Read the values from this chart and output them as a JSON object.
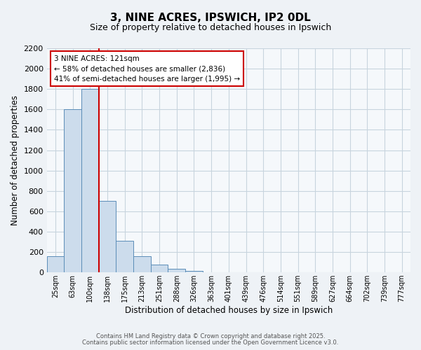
{
  "title": "3, NINE ACRES, IPSWICH, IP2 0DL",
  "subtitle": "Size of property relative to detached houses in Ipswich",
  "xlabel": "Distribution of detached houses by size in Ipswich",
  "ylabel": "Number of detached properties",
  "bar_labels": [
    "25sqm",
    "63sqm",
    "100sqm",
    "138sqm",
    "175sqm",
    "213sqm",
    "251sqm",
    "288sqm",
    "326sqm",
    "363sqm",
    "401sqm",
    "439sqm",
    "476sqm",
    "514sqm",
    "551sqm",
    "589sqm",
    "627sqm",
    "664sqm",
    "702sqm",
    "739sqm",
    "777sqm"
  ],
  "bar_values": [
    160,
    1600,
    1800,
    700,
    310,
    160,
    80,
    35,
    15,
    0,
    0,
    0,
    0,
    0,
    0,
    0,
    0,
    0,
    0,
    0,
    0
  ],
  "bar_color": "#ccdcec",
  "bar_edge_color": "#5b8db8",
  "vline_x": 2.5,
  "vline_color": "#cc0000",
  "annotation_title": "3 NINE ACRES: 121sqm",
  "annotation_line1": "← 58% of detached houses are smaller (2,836)",
  "annotation_line2": "41% of semi-detached houses are larger (1,995) →",
  "annotation_box_color": "#ffffff",
  "annotation_box_edge": "#cc0000",
  "ylim": [
    0,
    2200
  ],
  "yticks": [
    0,
    200,
    400,
    600,
    800,
    1000,
    1200,
    1400,
    1600,
    1800,
    2000,
    2200
  ],
  "footer1": "Contains HM Land Registry data © Crown copyright and database right 2025.",
  "footer2": "Contains public sector information licensed under the Open Government Licence v3.0.",
  "background_color": "#eef2f6",
  "plot_background_color": "#f5f8fb",
  "grid_color": "#c8d4de"
}
